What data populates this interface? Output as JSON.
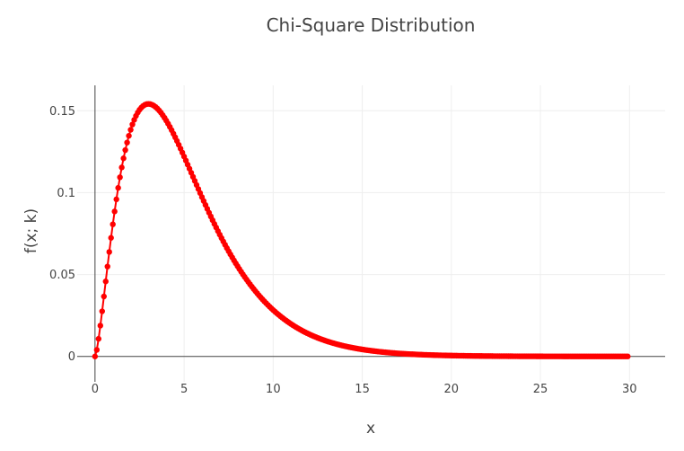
{
  "chart_data": {
    "type": "line",
    "title": "Chi-Square Distribution",
    "xlabel": "x",
    "ylabel": "f(x; k)",
    "xlim": [
      -1,
      32
    ],
    "ylim": [
      -0.0155,
      0.1655
    ],
    "xticks": [
      0,
      5,
      10,
      15,
      20,
      25,
      30
    ],
    "yticks": [
      0,
      0.05,
      0.1,
      0.15
    ],
    "ytick_labels": [
      "0",
      "0.05",
      "0.1",
      "0.15"
    ],
    "grid": true,
    "legend": "none",
    "series": [
      {
        "distribution": "chi-square",
        "degrees_of_freedom": 5,
        "x_start": 0,
        "x_end": 29.9,
        "x_step": 0.1,
        "mode": "lines+markers",
        "color": "#ff0000"
      }
    ]
  }
}
